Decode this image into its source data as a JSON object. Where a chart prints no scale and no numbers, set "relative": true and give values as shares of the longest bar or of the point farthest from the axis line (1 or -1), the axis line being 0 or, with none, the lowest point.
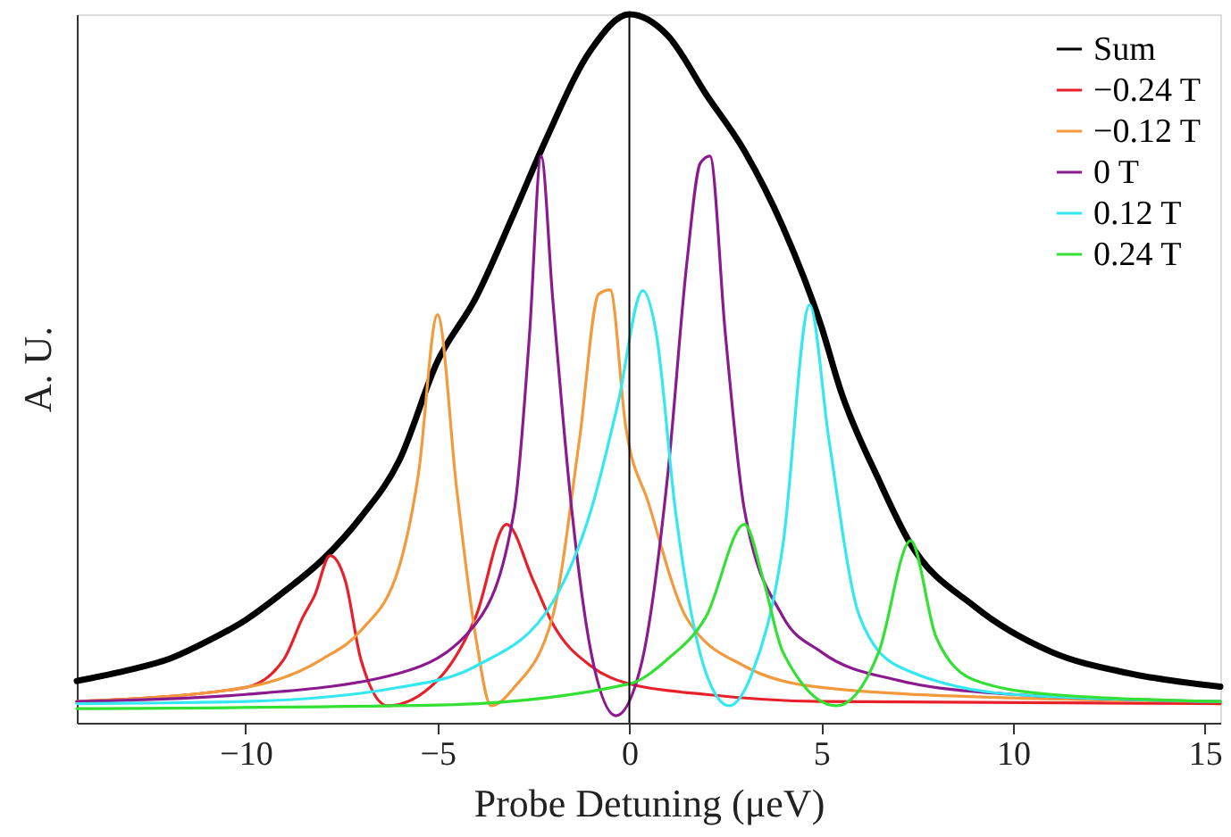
{
  "chart_data": {
    "type": "line",
    "xlabel": "Probe Detuning (μeV)",
    "ylabel": "A. U.",
    "relative": true,
    "xlim": [
      -14.4,
      15.4
    ],
    "xticks": [
      -10,
      -5,
      0,
      5,
      10,
      15
    ],
    "grid": false,
    "legend": "top right",
    "marker": "none",
    "line_style": "solid",
    "ref_lines": [
      {
        "axis": "x",
        "value": 0,
        "color": "#000000"
      }
    ],
    "series": [
      {
        "name": "Sum",
        "color": "#000000",
        "x": [
          -14.4,
          -13,
          -12,
          -11,
          -10,
          -9,
          -8,
          -7,
          -6,
          -5,
          -4,
          -3,
          -2.2,
          -1,
          0,
          1,
          2,
          3,
          4,
          5,
          5.5,
          6.5,
          7.3,
          9,
          11,
          13,
          15.4
        ],
        "values": [
          0.059,
          0.075,
          0.09,
          0.115,
          0.145,
          0.185,
          0.23,
          0.29,
          0.37,
          0.51,
          0.6,
          0.72,
          0.82,
          0.95,
          1.0,
          0.97,
          0.887,
          0.807,
          0.7,
          0.56,
          0.47,
          0.343,
          0.255,
          0.164,
          0.1,
          0.07,
          0.051
        ]
      },
      {
        "name": "−0.24 T",
        "color": "#e8202a",
        "x": [
          -14.4,
          -10,
          -9,
          -8.5,
          -8.2,
          -7.8,
          -7.4,
          -7,
          -6.3,
          -5,
          -4,
          -3.2,
          -2.5,
          -2,
          -1,
          0,
          2,
          5,
          15.4
        ],
        "values": [
          0.03,
          0.05,
          0.09,
          0.15,
          0.18,
          0.236,
          0.2,
          0.09,
          0.024,
          0.06,
          0.15,
          0.28,
          0.2,
          0.14,
          0.08,
          0.055,
          0.04,
          0.03,
          0.027
        ]
      },
      {
        "name": "−0.12 T",
        "color": "#f39a3c",
        "x": [
          -14.4,
          -10,
          -8,
          -7,
          -6,
          -5.5,
          -5,
          -4.5,
          -4,
          -3.6,
          -3,
          -2,
          -1.3,
          -0.8,
          -0.5,
          -0.1,
          0.5,
          1.5,
          3,
          5,
          10,
          15.4
        ],
        "values": [
          0.03,
          0.05,
          0.09,
          0.13,
          0.22,
          0.35,
          0.576,
          0.33,
          0.12,
          0.024,
          0.05,
          0.15,
          0.4,
          0.605,
          0.611,
          0.42,
          0.31,
          0.147,
          0.08,
          0.05,
          0.035,
          0.03
        ]
      },
      {
        "name": "0 T",
        "color": "#8b1a8e",
        "x": [
          -14.4,
          -10,
          -6,
          -4,
          -3,
          -2.6,
          -2.3,
          -2,
          -1.5,
          -1,
          -0.35,
          0.3,
          1,
          1.5,
          1.85,
          2.1,
          2.5,
          3,
          4,
          5,
          7,
          10,
          15.4
        ],
        "values": [
          0.03,
          0.04,
          0.07,
          0.14,
          0.3,
          0.55,
          0.8,
          0.6,
          0.3,
          0.1,
          0.01,
          0.08,
          0.35,
          0.65,
          0.79,
          0.8,
          0.55,
          0.3,
          0.15,
          0.1,
          0.06,
          0.04,
          0.03
        ]
      },
      {
        "name": "0.12 T",
        "color": "#33e8f0",
        "x": [
          -14.4,
          -10,
          -6,
          -4,
          -2,
          -1,
          -0.3,
          0.35,
          0.7,
          1.2,
          2,
          2.6,
          3.2,
          4,
          4.7,
          5.2,
          6,
          7,
          10,
          15.4
        ],
        "values": [
          0.027,
          0.03,
          0.05,
          0.08,
          0.17,
          0.3,
          0.45,
          0.61,
          0.55,
          0.3,
          0.07,
          0.024,
          0.07,
          0.25,
          0.59,
          0.4,
          0.15,
          0.08,
          0.04,
          0.03
        ]
      },
      {
        "name": "0.24 T",
        "color": "#33e033",
        "x": [
          -14.4,
          -5,
          0,
          1,
          2,
          3,
          3.5,
          4,
          5.4,
          6.5,
          7.33,
          8,
          9,
          11,
          15.4
        ],
        "values": [
          0.02,
          0.025,
          0.055,
          0.09,
          0.15,
          0.28,
          0.2,
          0.1,
          0.024,
          0.1,
          0.257,
          0.12,
          0.06,
          0.04,
          0.03
        ]
      }
    ]
  }
}
